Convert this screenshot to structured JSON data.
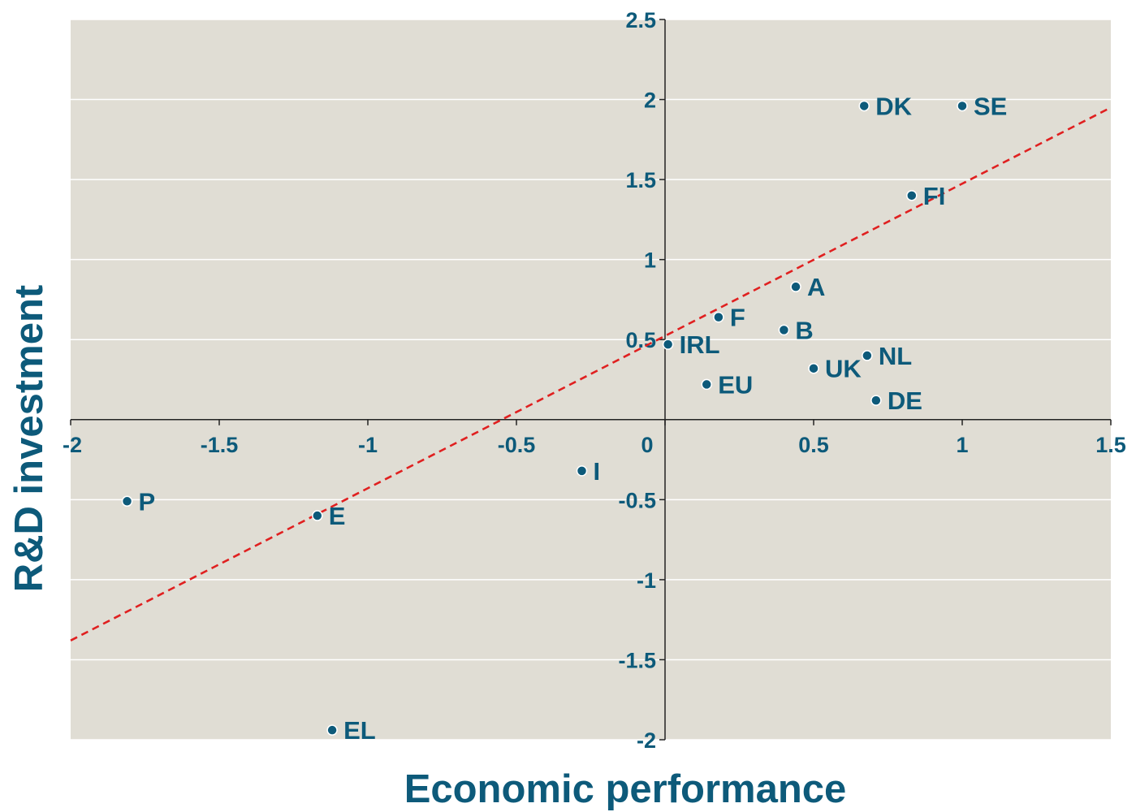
{
  "colors": {
    "plot_background": "#e0ddd4",
    "text_and_points": "#0d5a7a",
    "gridlines": "#ffffff",
    "axis_lines": "#222222",
    "trend_line": "#e02020"
  },
  "chart_data": {
    "type": "scatter",
    "title": "",
    "xlabel": "Economic performance",
    "ylabel": "R&D investment",
    "xlim": [
      -2,
      1.5
    ],
    "ylim": [
      -2,
      2.5
    ],
    "x_ticks": [
      -2,
      -1.5,
      -1,
      -0.5,
      0,
      0.5,
      1,
      1.5
    ],
    "y_ticks": [
      -2,
      -1.5,
      -1,
      -0.5,
      0.5,
      1,
      1.5,
      2,
      2.5
    ],
    "x_tick_labels": [
      "-2",
      "-1.5",
      "-1",
      "-0.5",
      "0",
      "0.5",
      "1",
      "1.5"
    ],
    "y_tick_labels": [
      "-2",
      "-1.5",
      "-1",
      "-0.5",
      "0.5",
      "1",
      "1.5",
      "2",
      "2.5"
    ],
    "grid": "horizontal",
    "legend": "none",
    "points": [
      {
        "label": "DK",
        "x": 0.67,
        "y": 1.96
      },
      {
        "label": "SE",
        "x": 1.0,
        "y": 1.96
      },
      {
        "label": "FI",
        "x": 0.83,
        "y": 1.4
      },
      {
        "label": "A",
        "x": 0.44,
        "y": 0.83
      },
      {
        "label": "F",
        "x": 0.18,
        "y": 0.64
      },
      {
        "label": "B",
        "x": 0.4,
        "y": 0.56
      },
      {
        "label": "IRL",
        "x": 0.01,
        "y": 0.47
      },
      {
        "label": "NL",
        "x": 0.68,
        "y": 0.4
      },
      {
        "label": "UK",
        "x": 0.5,
        "y": 0.32
      },
      {
        "label": "EU",
        "x": 0.14,
        "y": 0.22
      },
      {
        "label": "DE",
        "x": 0.71,
        "y": 0.12
      },
      {
        "label": "I",
        "x": -0.28,
        "y": -0.32
      },
      {
        "label": "P",
        "x": -1.81,
        "y": -0.51
      },
      {
        "label": "E",
        "x": -1.17,
        "y": -0.6
      },
      {
        "label": "EL",
        "x": -1.12,
        "y": -1.94
      }
    ],
    "trend_line": {
      "style": "dashed",
      "x": [
        -2,
        1.5
      ],
      "y": [
        -1.38,
        1.95
      ]
    }
  }
}
